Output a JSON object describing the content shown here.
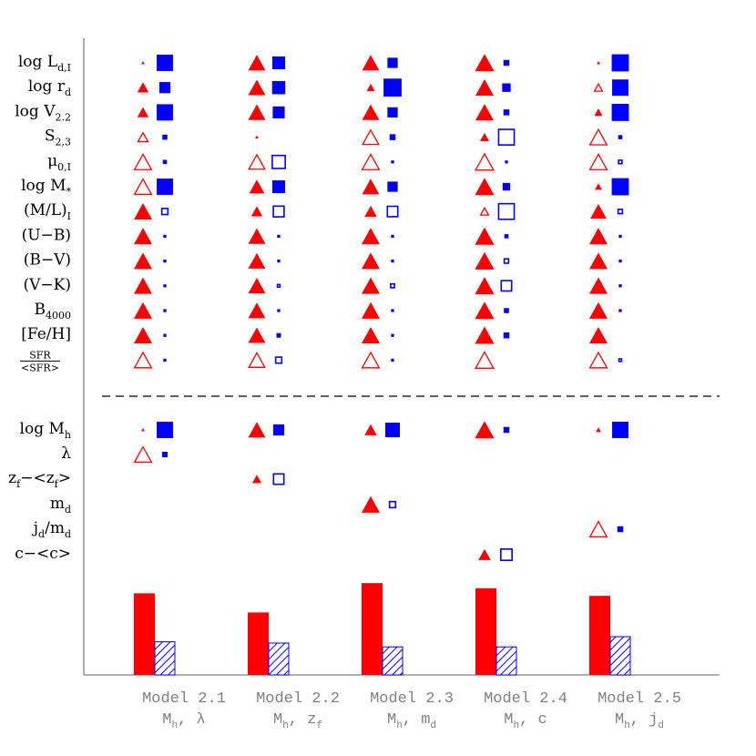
{
  "chart_data": {
    "type": "scatter",
    "title": "",
    "colors": {
      "red": "#ff0000",
      "blue": "#0000ff",
      "axis": "#808080",
      "text": "#000000",
      "model_label": "#808080"
    },
    "models": [
      {
        "name": "Model 2.1",
        "variables": [
          {
            "t": "M",
            "sub": "h"
          },
          {
            "t": ", λ",
            "sub": ""
          }
        ]
      },
      {
        "name": "Model 2.2",
        "variables": [
          {
            "t": "M",
            "sub": "h"
          },
          {
            "t": ", z",
            "sub": "f"
          }
        ]
      },
      {
        "name": "Model 2.3",
        "variables": [
          {
            "t": "M",
            "sub": "h"
          },
          {
            "t": ", m",
            "sub": "d"
          }
        ]
      },
      {
        "name": "Model 2.4",
        "variables": [
          {
            "t": "M",
            "sub": "h"
          },
          {
            "t": ", c",
            "sub": ""
          }
        ]
      },
      {
        "name": "Model 2.5",
        "variables": [
          {
            "t": "M",
            "sub": "h"
          },
          {
            "t": ", j",
            "sub": "d"
          }
        ]
      }
    ],
    "upper_rows": [
      {
        "label": [
          {
            "t": "log L",
            "sub": "d,I"
          }
        ]
      },
      {
        "label": [
          {
            "t": "log r",
            "sub": "d"
          }
        ]
      },
      {
        "label": [
          {
            "t": "log V",
            "sub": "2.2"
          }
        ]
      },
      {
        "label": [
          {
            "t": "S",
            "sub": "2,3"
          }
        ]
      },
      {
        "label": [
          {
            "t": "μ",
            "sub": "0,I"
          }
        ]
      },
      {
        "label": [
          {
            "t": "log M",
            "sub": "*"
          }
        ]
      },
      {
        "label": [
          {
            "t": "(M/L)",
            "sub": "I"
          }
        ]
      },
      {
        "label": [
          {
            "t": "(U−B)",
            "sub": ""
          }
        ]
      },
      {
        "label": [
          {
            "t": "(B−V)",
            "sub": ""
          }
        ]
      },
      {
        "label": [
          {
            "t": "(V−K)",
            "sub": ""
          }
        ]
      },
      {
        "label": [
          {
            "t": "B",
            "sub": "4000"
          }
        ]
      },
      {
        "label": [
          {
            "t": "[Fe/H]",
            "sub": ""
          }
        ]
      },
      {
        "label": [],
        "fraction": {
          "num": "SFR",
          "den": "<SFR>"
        }
      }
    ],
    "lower_rows": [
      {
        "label": [
          {
            "t": "log M",
            "sub": "h"
          }
        ]
      },
      {
        "label": [
          {
            "t": "λ",
            "sub": ""
          }
        ]
      },
      {
        "label": [
          {
            "t": "z",
            "sub": "f"
          },
          {
            "t": "−<z",
            "sub": "f"
          },
          {
            "t": ">",
            "sub": ""
          }
        ]
      },
      {
        "label": [
          {
            "t": "m",
            "sub": "d"
          }
        ]
      },
      {
        "label": [
          {
            "t": "j",
            "sub": "d"
          },
          {
            "t": "/m",
            "sub": "d"
          }
        ]
      },
      {
        "label": [
          {
            "t": "c−<c>",
            "sub": ""
          }
        ]
      }
    ],
    "triangles": [
      [
        [
          0.03,
          1
        ],
        [
          0.5,
          1
        ],
        [
          0.5,
          1
        ],
        [
          0.5,
          0
        ],
        [
          0.85,
          0
        ],
        [
          0.85,
          0
        ],
        [
          0.85,
          1
        ],
        [
          0.85,
          1
        ],
        [
          0.85,
          1
        ],
        [
          0.85,
          1
        ],
        [
          0.85,
          1
        ],
        [
          0.85,
          1
        ],
        [
          0.85,
          0
        ],
        [
          0.05,
          1
        ],
        [
          0.85,
          0
        ],
        [
          0,
          1
        ],
        [
          0,
          1
        ],
        [
          0,
          1
        ],
        [
          0,
          1
        ]
      ],
      [
        [
          0.8,
          1
        ],
        [
          0.8,
          1
        ],
        [
          0.8,
          1
        ],
        [
          0.05,
          1
        ],
        [
          0.8,
          0
        ],
        [
          0.7,
          1
        ],
        [
          0.5,
          1
        ],
        [
          0.8,
          1
        ],
        [
          0.8,
          1
        ],
        [
          0.8,
          1
        ],
        [
          0.8,
          1
        ],
        [
          0.8,
          1
        ],
        [
          0.8,
          0
        ],
        [
          0.8,
          1
        ],
        [
          0,
          1
        ],
        [
          0.4,
          1
        ],
        [
          0,
          1
        ],
        [
          0,
          1
        ],
        [
          0,
          1
        ]
      ],
      [
        [
          0.8,
          1
        ],
        [
          0.35,
          1
        ],
        [
          0.8,
          1
        ],
        [
          0.8,
          0
        ],
        [
          0.85,
          0
        ],
        [
          0.8,
          1
        ],
        [
          0.55,
          1
        ],
        [
          0.85,
          1
        ],
        [
          0.85,
          1
        ],
        [
          0.85,
          1
        ],
        [
          0.85,
          1
        ],
        [
          0.85,
          1
        ],
        [
          0.85,
          0
        ],
        [
          0.55,
          1
        ],
        [
          0,
          1
        ],
        [
          0,
          1
        ],
        [
          0.85,
          1
        ],
        [
          0,
          1
        ],
        [
          0,
          1
        ]
      ],
      [
        [
          0.9,
          1
        ],
        [
          0.85,
          1
        ],
        [
          0.85,
          1
        ],
        [
          0.4,
          1
        ],
        [
          0.9,
          0
        ],
        [
          0.9,
          1
        ],
        [
          0.4,
          0
        ],
        [
          0.9,
          1
        ],
        [
          0.9,
          1
        ],
        [
          0.9,
          1
        ],
        [
          0.9,
          1
        ],
        [
          0.9,
          1
        ],
        [
          0.9,
          0
        ],
        [
          0.9,
          1
        ],
        [
          0,
          1
        ],
        [
          0,
          1
        ],
        [
          0,
          1
        ],
        [
          0,
          1
        ],
        [
          0.55,
          1
        ]
      ],
      [
        [
          0.03,
          1
        ],
        [
          0.4,
          0
        ],
        [
          0.35,
          1
        ],
        [
          0.85,
          0
        ],
        [
          0.85,
          0
        ],
        [
          0.3,
          1
        ],
        [
          0.75,
          1
        ],
        [
          0.85,
          1
        ],
        [
          0.85,
          1
        ],
        [
          0.85,
          1
        ],
        [
          0.85,
          1
        ],
        [
          0.85,
          1
        ],
        [
          0.85,
          0
        ],
        [
          0.2,
          1
        ],
        [
          0,
          1
        ],
        [
          0,
          1
        ],
        [
          0,
          1
        ],
        [
          0.85,
          0
        ],
        [
          0,
          1
        ]
      ]
    ],
    "squares": [
      [
        [
          0.9,
          1
        ],
        [
          0.6,
          1
        ],
        [
          0.9,
          1
        ],
        [
          0.25,
          1
        ],
        [
          0.2,
          1
        ],
        [
          0.9,
          1
        ],
        [
          0.35,
          0
        ],
        [
          0.08,
          1
        ],
        [
          0.08,
          1
        ],
        [
          0.1,
          1
        ],
        [
          0.05,
          1
        ],
        [
          0.08,
          1
        ],
        [
          0.12,
          1
        ],
        [
          0.9,
          1
        ],
        [
          0.28,
          1
        ],
        [
          0,
          1
        ],
        [
          0,
          1
        ],
        [
          0,
          1
        ],
        [
          0,
          1
        ]
      ],
      [
        [
          0.7,
          1
        ],
        [
          0.72,
          1
        ],
        [
          0.65,
          1
        ],
        [
          0,
          1
        ],
        [
          0.75,
          0
        ],
        [
          0.7,
          1
        ],
        [
          0.62,
          0
        ],
        [
          0.05,
          1
        ],
        [
          0.05,
          1
        ],
        [
          0.15,
          0
        ],
        [
          0.04,
          1
        ],
        [
          0.22,
          1
        ],
        [
          0.35,
          0
        ],
        [
          0.6,
          1
        ],
        [
          0,
          1
        ],
        [
          0.6,
          0
        ],
        [
          0,
          1
        ],
        [
          0,
          1
        ],
        [
          0,
          1
        ]
      ],
      [
        [
          0.55,
          1
        ],
        [
          1.0,
          1
        ],
        [
          0.55,
          1
        ],
        [
          0.3,
          1
        ],
        [
          0.12,
          1
        ],
        [
          0.55,
          1
        ],
        [
          0.6,
          0
        ],
        [
          0.05,
          1
        ],
        [
          0.05,
          1
        ],
        [
          0.22,
          0
        ],
        [
          0.1,
          1
        ],
        [
          0.06,
          1
        ],
        [
          0.03,
          1
        ],
        [
          0.8,
          1
        ],
        [
          0,
          1
        ],
        [
          0,
          1
        ],
        [
          0.35,
          0
        ],
        [
          0,
          1
        ],
        [
          0,
          1
        ]
      ],
      [
        [
          0.3,
          1
        ],
        [
          0.45,
          1
        ],
        [
          0.3,
          1
        ],
        [
          0.9,
          0
        ],
        [
          0.04,
          1
        ],
        [
          0.4,
          1
        ],
        [
          0.9,
          0
        ],
        [
          0.2,
          1
        ],
        [
          0.25,
          0
        ],
        [
          0.6,
          0
        ],
        [
          0.25,
          1
        ],
        [
          0.3,
          1
        ],
        [
          0,
          1
        ],
        [
          0.3,
          1
        ],
        [
          0,
          1
        ],
        [
          0,
          1
        ],
        [
          0,
          1
        ],
        [
          0,
          1
        ],
        [
          0.65,
          0
        ]
      ],
      [
        [
          0.95,
          1
        ],
        [
          0.9,
          1
        ],
        [
          0.95,
          1
        ],
        [
          0.2,
          1
        ],
        [
          0.2,
          0
        ],
        [
          0.95,
          1
        ],
        [
          0.25,
          0
        ],
        [
          0.03,
          1
        ],
        [
          0.05,
          1
        ],
        [
          0.08,
          1
        ],
        [
          0.03,
          1
        ],
        [
          0,
          1
        ],
        [
          0.15,
          0
        ],
        [
          0.9,
          1
        ],
        [
          0,
          1
        ],
        [
          0,
          1
        ],
        [
          0,
          1
        ],
        [
          0.3,
          1
        ],
        [
          0,
          1
        ]
      ]
    ],
    "bars": [
      {
        "red": 0.64,
        "hatched": 0.26
      },
      {
        "red": 0.49,
        "hatched": 0.25
      },
      {
        "red": 0.72,
        "hatched": 0.22
      },
      {
        "red": 0.68,
        "hatched": 0.22
      },
      {
        "red": 0.62,
        "hatched": 0.3
      }
    ],
    "dashed_separator": true
  }
}
